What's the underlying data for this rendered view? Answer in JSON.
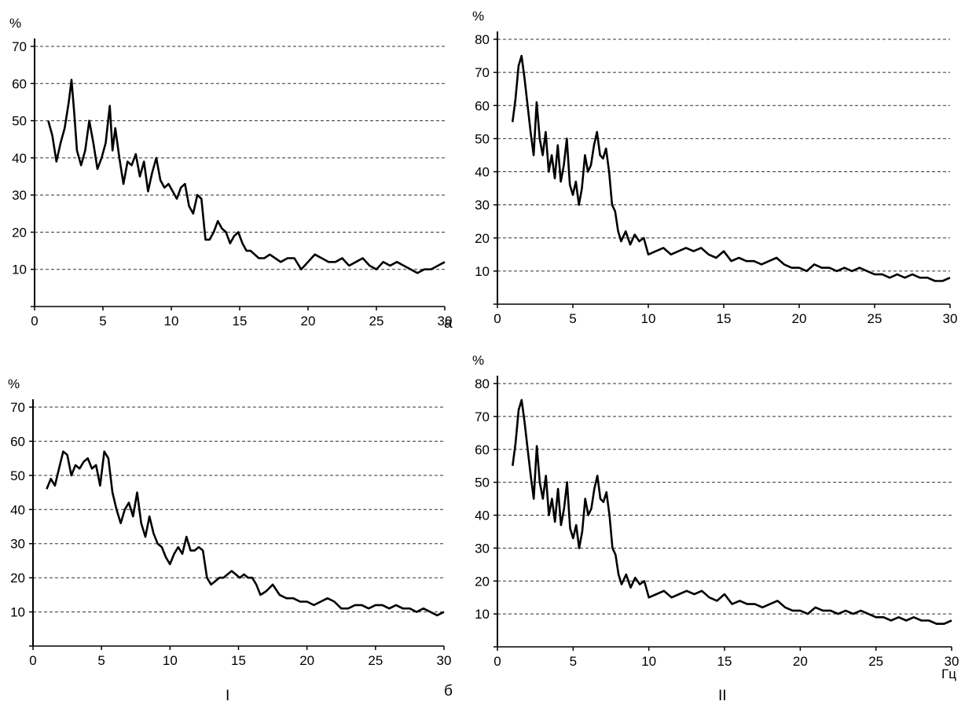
{
  "panel_labels": {
    "a": "а",
    "b": "б",
    "left": "I",
    "right": "II"
  },
  "x_unit": "Гц",
  "chart_data": [
    {
      "type": "line",
      "ylabel": "%",
      "xlabel": "",
      "xlim": [
        0,
        30
      ],
      "ylim": [
        0,
        70
      ],
      "xticks": [
        0,
        5,
        10,
        15,
        20,
        25,
        30
      ],
      "yticks": [
        10,
        20,
        30,
        40,
        50,
        60,
        70
      ],
      "grid": "dashed horizontal",
      "series": [
        {
          "x": [
            1.0,
            1.3,
            1.6,
            1.9,
            2.2,
            2.5,
            2.7,
            2.9,
            3.1,
            3.4,
            3.7,
            4.0,
            4.3,
            4.6,
            4.9,
            5.2,
            5.5,
            5.7,
            5.9,
            6.2,
            6.5,
            6.8,
            7.1,
            7.4,
            7.7,
            8.0,
            8.3,
            8.6,
            8.9,
            9.2,
            9.5,
            9.8,
            10.1,
            10.4,
            10.7,
            11.0,
            11.3,
            11.6,
            11.9,
            12.2,
            12.5,
            12.8,
            13.1,
            13.4,
            13.7,
            14.0,
            14.3,
            14.6,
            14.9,
            15.2,
            15.5,
            15.8,
            16.1,
            16.4,
            16.8,
            17.2,
            17.6,
            18.0,
            18.5,
            19.0,
            19.5,
            20.0,
            20.5,
            21.0,
            21.5,
            22.0,
            22.5,
            23.0,
            23.5,
            24.0,
            24.5,
            25.0,
            25.5,
            26.0,
            26.5,
            27.0,
            27.5,
            28.0,
            28.5,
            29.0,
            29.5,
            30.0
          ],
          "y": [
            50,
            46,
            39,
            44,
            48,
            55,
            61,
            52,
            42,
            38,
            42,
            50,
            44,
            37,
            40,
            44,
            54,
            42,
            48,
            40,
            33,
            39,
            38,
            41,
            35,
            39,
            31,
            36,
            40,
            34,
            32,
            33,
            31,
            29,
            32,
            33,
            27,
            25,
            30,
            29,
            18,
            18,
            20,
            23,
            21,
            20,
            17,
            19,
            20,
            17,
            15,
            15,
            14,
            13,
            13,
            14,
            13,
            12,
            13,
            13,
            10,
            12,
            14,
            13,
            12,
            12,
            13,
            11,
            12,
            13,
            11,
            10,
            12,
            11,
            12,
            11,
            10,
            9,
            10,
            10,
            11,
            12
          ]
        }
      ]
    },
    {
      "type": "line",
      "ylabel": "%",
      "xlabel": "",
      "xlim": [
        0,
        30
      ],
      "ylim": [
        0,
        80
      ],
      "xticks": [
        0,
        5,
        10,
        15,
        20,
        25,
        30
      ],
      "yticks": [
        10,
        20,
        30,
        40,
        50,
        60,
        70,
        80
      ],
      "grid": "dashed horizontal",
      "series": [
        {
          "x": [
            1.0,
            1.2,
            1.4,
            1.6,
            1.8,
            2.0,
            2.2,
            2.4,
            2.6,
            2.8,
            3.0,
            3.2,
            3.4,
            3.6,
            3.8,
            4.0,
            4.2,
            4.4,
            4.6,
            4.8,
            5.0,
            5.2,
            5.4,
            5.6,
            5.8,
            6.0,
            6.2,
            6.4,
            6.6,
            6.8,
            7.0,
            7.2,
            7.4,
            7.6,
            7.8,
            8.0,
            8.2,
            8.5,
            8.8,
            9.1,
            9.4,
            9.7,
            10.0,
            10.5,
            11.0,
            11.5,
            12.0,
            12.5,
            13.0,
            13.5,
            14.0,
            14.5,
            15.0,
            15.5,
            16.0,
            16.5,
            17.0,
            17.5,
            18.0,
            18.5,
            19.0,
            19.5,
            20.0,
            20.5,
            21.0,
            21.5,
            22.0,
            22.5,
            23.0,
            23.5,
            24.0,
            24.5,
            25.0,
            25.5,
            26.0,
            26.5,
            27.0,
            27.5,
            28.0,
            28.5,
            29.0,
            29.5,
            30.0
          ],
          "y": [
            55,
            62,
            72,
            75,
            68,
            60,
            52,
            45,
            61,
            50,
            45,
            52,
            40,
            45,
            38,
            48,
            37,
            42,
            50,
            36,
            33,
            37,
            30,
            35,
            45,
            40,
            42,
            48,
            52,
            45,
            44,
            47,
            40,
            30,
            28,
            22,
            19,
            22,
            18,
            21,
            19,
            20,
            15,
            16,
            17,
            15,
            16,
            17,
            16,
            17,
            15,
            14,
            16,
            13,
            14,
            13,
            13,
            12,
            13,
            14,
            12,
            11,
            11,
            10,
            12,
            11,
            11,
            10,
            11,
            10,
            11,
            10,
            9,
            9,
            8,
            9,
            8,
            9,
            8,
            8,
            7,
            7,
            8
          ]
        }
      ]
    },
    {
      "type": "line",
      "ylabel": "%",
      "xlabel": "",
      "xlim": [
        0,
        30
      ],
      "ylim": [
        0,
        70
      ],
      "xticks": [
        0,
        5,
        10,
        15,
        20,
        25,
        30
      ],
      "yticks": [
        10,
        20,
        30,
        40,
        50,
        60,
        70
      ],
      "grid": "dashed horizontal",
      "series": [
        {
          "x": [
            1.0,
            1.3,
            1.6,
            1.9,
            2.2,
            2.5,
            2.8,
            3.1,
            3.4,
            3.7,
            4.0,
            4.3,
            4.6,
            4.9,
            5.2,
            5.5,
            5.8,
            6.1,
            6.4,
            6.7,
            7.0,
            7.3,
            7.6,
            7.9,
            8.2,
            8.5,
            8.8,
            9.1,
            9.4,
            9.7,
            10.0,
            10.3,
            10.6,
            10.9,
            11.2,
            11.5,
            11.8,
            12.1,
            12.4,
            12.7,
            13.0,
            13.3,
            13.6,
            13.9,
            14.2,
            14.5,
            14.8,
            15.1,
            15.4,
            15.7,
            16.0,
            16.3,
            16.6,
            17.0,
            17.5,
            18.0,
            18.5,
            19.0,
            19.5,
            20.0,
            20.5,
            21.0,
            21.5,
            22.0,
            22.5,
            23.0,
            23.5,
            24.0,
            24.5,
            25.0,
            25.5,
            26.0,
            26.5,
            27.0,
            27.5,
            28.0,
            28.5,
            29.0,
            29.5,
            30.0
          ],
          "y": [
            46,
            49,
            47,
            52,
            57,
            56,
            50,
            53,
            52,
            54,
            55,
            52,
            53,
            47,
            57,
            55,
            45,
            40,
            36,
            40,
            42,
            38,
            45,
            36,
            32,
            38,
            33,
            30,
            29,
            26,
            24,
            27,
            29,
            27,
            32,
            28,
            28,
            29,
            28,
            20,
            18,
            19,
            20,
            20,
            21,
            22,
            21,
            20,
            21,
            20,
            20,
            18,
            15,
            16,
            18,
            15,
            14,
            14,
            13,
            13,
            12,
            13,
            14,
            13,
            11,
            11,
            12,
            12,
            11,
            12,
            12,
            11,
            12,
            11,
            11,
            10,
            11,
            10,
            9,
            10
          ]
        }
      ]
    },
    {
      "type": "line",
      "ylabel": "%",
      "xlabel": "Гц",
      "xlim": [
        0,
        30
      ],
      "ylim": [
        0,
        80
      ],
      "xticks": [
        0,
        5,
        10,
        15,
        20,
        25,
        30
      ],
      "yticks": [
        10,
        20,
        30,
        40,
        50,
        60,
        70,
        80
      ],
      "grid": "dashed horizontal",
      "series": [
        {
          "x": [
            1.0,
            1.2,
            1.4,
            1.6,
            1.8,
            2.0,
            2.2,
            2.4,
            2.6,
            2.8,
            3.0,
            3.2,
            3.4,
            3.6,
            3.8,
            4.0,
            4.2,
            4.4,
            4.6,
            4.8,
            5.0,
            5.2,
            5.4,
            5.6,
            5.8,
            6.0,
            6.2,
            6.4,
            6.6,
            6.8,
            7.0,
            7.2,
            7.4,
            7.6,
            7.8,
            8.0,
            8.2,
            8.5,
            8.8,
            9.1,
            9.4,
            9.7,
            10.0,
            10.5,
            11.0,
            11.5,
            12.0,
            12.5,
            13.0,
            13.5,
            14.0,
            14.5,
            15.0,
            15.5,
            16.0,
            16.5,
            17.0,
            17.5,
            18.0,
            18.5,
            19.0,
            19.5,
            20.0,
            20.5,
            21.0,
            21.5,
            22.0,
            22.5,
            23.0,
            23.5,
            24.0,
            24.5,
            25.0,
            25.5,
            26.0,
            26.5,
            27.0,
            27.5,
            28.0,
            28.5,
            29.0,
            29.5,
            30.0
          ],
          "y": [
            55,
            62,
            72,
            75,
            68,
            60,
            52,
            45,
            61,
            50,
            45,
            52,
            40,
            45,
            38,
            48,
            37,
            42,
            50,
            36,
            33,
            37,
            30,
            35,
            45,
            40,
            42,
            48,
            52,
            45,
            44,
            47,
            40,
            30,
            28,
            22,
            19,
            22,
            18,
            21,
            19,
            20,
            15,
            16,
            17,
            15,
            16,
            17,
            16,
            17,
            15,
            14,
            16,
            13,
            14,
            13,
            13,
            12,
            13,
            14,
            12,
            11,
            11,
            10,
            12,
            11,
            11,
            10,
            11,
            10,
            11,
            10,
            9,
            9,
            8,
            9,
            8,
            9,
            8,
            8,
            7,
            7,
            8
          ]
        }
      ]
    }
  ]
}
